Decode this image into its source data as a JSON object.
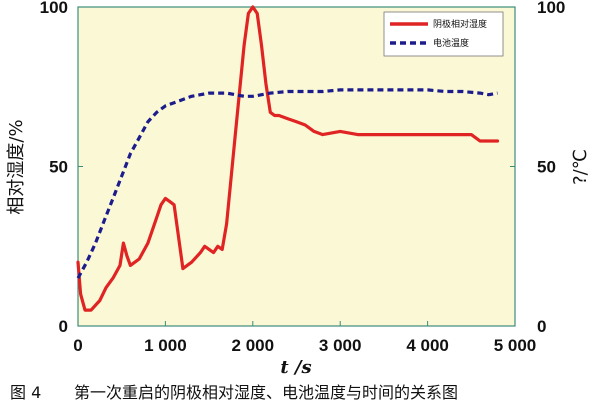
{
  "chart_data": {
    "type": "line",
    "title": "",
    "xlabel": "t /s",
    "ylabel_left": "相对湿度/%",
    "ylabel_right": "?/℃",
    "xlim": [
      0,
      5000
    ],
    "ylim_left": [
      0,
      100
    ],
    "ylim_right": [
      0,
      100
    ],
    "x_ticks": [
      "0",
      "1 000",
      "2 000",
      "3 000",
      "4 000",
      "5 000"
    ],
    "y_ticks_left": [
      "0",
      "50",
      "100"
    ],
    "y_ticks_right": [
      "0",
      "50",
      "100"
    ],
    "legend_position": "top-right",
    "grid": false,
    "series": [
      {
        "name": "阴极相对湿度",
        "color": "#e02424",
        "style": "solid",
        "axis": "left",
        "x": [
          0,
          30,
          80,
          150,
          250,
          320,
          400,
          480,
          520,
          560,
          600,
          650,
          700,
          800,
          900,
          950,
          1000,
          1050,
          1100,
          1150,
          1200,
          1300,
          1400,
          1450,
          1500,
          1550,
          1600,
          1650,
          1700,
          1800,
          1900,
          1950,
          2000,
          2050,
          2100,
          2150,
          2200,
          2250,
          2300,
          2400,
          2500,
          2600,
          2700,
          2800,
          3000,
          3200,
          3400,
          3600,
          3800,
          4000,
          4200,
          4400,
          4500,
          4550,
          4600,
          4700,
          4800
        ],
        "y": [
          20,
          10,
          5,
          5,
          8,
          12,
          15,
          19,
          26,
          22,
          19,
          20,
          21,
          26,
          34,
          38,
          40,
          39,
          38,
          28,
          18,
          20,
          23,
          25,
          24,
          23,
          25,
          24,
          32,
          60,
          88,
          98,
          100,
          98,
          88,
          76,
          67,
          66,
          66,
          65,
          64,
          63,
          61,
          60,
          61,
          60,
          60,
          60,
          60,
          60,
          60,
          60,
          60,
          59,
          58,
          58,
          58
        ]
      },
      {
        "name": "电池温度",
        "color": "#1c1c8c",
        "style": "dashed",
        "axis": "right",
        "x": [
          0,
          100,
          200,
          300,
          400,
          500,
          600,
          700,
          800,
          900,
          1000,
          1100,
          1200,
          1300,
          1400,
          1500,
          1600,
          1700,
          1800,
          1900,
          2000,
          2200,
          2400,
          2600,
          2800,
          3000,
          3200,
          3400,
          3600,
          3800,
          4000,
          4200,
          4400,
          4600,
          4700,
          4800
        ],
        "y": [
          15,
          20,
          26,
          33,
          40,
          47,
          54,
          59,
          64,
          67,
          69,
          70,
          71,
          72,
          72.5,
          73,
          73,
          73,
          72.5,
          72,
          72,
          73,
          73.5,
          73.5,
          73.5,
          74,
          74,
          74,
          74,
          74,
          74,
          73.5,
          73.5,
          73,
          72.5,
          73
        ]
      }
    ]
  },
  "caption": {
    "label": "图 4",
    "text": "第一次重启的阴极相对湿度、电池温度与时间的关系图"
  }
}
